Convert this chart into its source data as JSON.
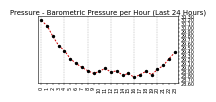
{
  "title": "Pressure - Barometric Pressure per Hour (Last 24 Hours)",
  "hours": [
    0,
    1,
    2,
    3,
    4,
    5,
    6,
    7,
    8,
    9,
    10,
    11,
    12,
    13,
    14,
    15,
    16,
    17,
    18,
    19,
    20,
    21,
    22,
    23
  ],
  "pressure": [
    30.18,
    30.05,
    29.78,
    29.55,
    29.42,
    29.22,
    29.1,
    29.0,
    28.92,
    28.85,
    28.9,
    28.98,
    28.88,
    28.92,
    28.8,
    28.85,
    28.75,
    28.82,
    28.9,
    28.82,
    28.95,
    29.05,
    29.22,
    29.38
  ],
  "line_color": "#cc0000",
  "marker_color": "#000000",
  "bg_color": "#ffffff",
  "grid_color": "#888888",
  "title_fontsize": 5.0,
  "tick_fontsize": 3.5,
  "ylim_min": 28.6,
  "ylim_max": 30.3,
  "ytick_step": 0.1,
  "grid_every": 4,
  "xtick_every": 1,
  "xlim_left": -0.5,
  "xlim_right": 23.5
}
